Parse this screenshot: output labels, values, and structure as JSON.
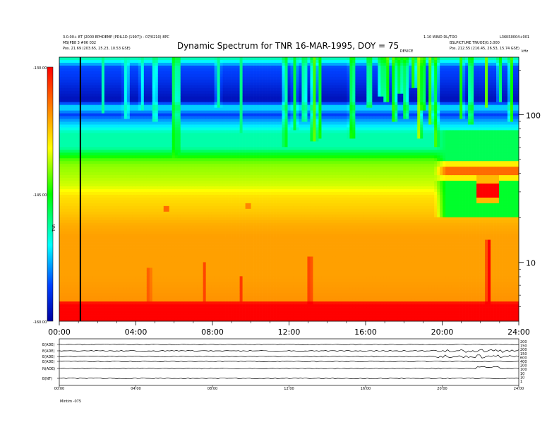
{
  "chart_data": {
    "type": "heatmap",
    "title": "Dynamic Spectrum for TNR 16-MAR-1995, DOY = 75",
    "header_left": [
      "3.0.00+ 8T (2000 EPHDEMP (PDIL1D (1997)) - 07/0210) 8PC",
      "MS(PB8 3 #06 032",
      "Pos.   21.69 (203.65, 25.23, 10.53 GSE)"
    ],
    "header_right": [
      "1.10 WIND DL/TOO",
      "L36KS0004+001",
      "BSLPICTURE TNUOE(0.3.000",
      "Pos.   212.55 (216.45, 26.53, 15.74 GSE)"
    ],
    "center_small_label": "DEVICE",
    "xaxis": {
      "range_hours": [
        0,
        24
      ],
      "tick_labels": [
        "00:00",
        "04:00",
        "08:00",
        "12:00",
        "16:00",
        "20:00",
        "24:00"
      ]
    },
    "yaxis_right": {
      "scale": "log",
      "unit_label": "kHz",
      "range_khz": [
        4.0,
        245.0
      ],
      "tick_labels": [
        "100",
        "10"
      ]
    },
    "colorbar": {
      "labels": [
        "-130.00",
        "-145.00",
        "-160.00"
      ],
      "range_db": [
        -160,
        -130
      ],
      "unit_label": "TNR",
      "colors": [
        "#ff0000",
        "#ff8000",
        "#ffff00",
        "#00ff00",
        "#00ffff",
        "#0040ff",
        "#0000a0"
      ]
    },
    "marker_time_hours": 1.1,
    "base_levels_db": [
      {
        "freq_khz": 245,
        "db": -138.5
      },
      {
        "freq_khz": 225,
        "db": -142
      },
      {
        "freq_khz": 210,
        "db": -145.5
      },
      {
        "freq_khz": 175,
        "db": -146.5
      },
      {
        "freq_khz": 125,
        "db": -149
      },
      {
        "freq_khz": 112,
        "db": -141
      },
      {
        "freq_khz": 100,
        "db": -146
      },
      {
        "freq_khz": 90,
        "db": -143
      },
      {
        "freq_khz": 75,
        "db": -139
      },
      {
        "freq_khz": 60,
        "db": -139
      },
      {
        "freq_khz": 49,
        "db": -133
      },
      {
        "freq_khz": 45,
        "db": -132
      },
      {
        "freq_khz": 40,
        "db": -131.5
      },
      {
        "freq_khz": 33,
        "db": -130.5
      },
      {
        "freq_khz": 28,
        "db": -128.5
      },
      {
        "freq_khz": 22,
        "db": -127.5
      },
      {
        "freq_khz": 18,
        "db": -126.5
      },
      {
        "freq_khz": 15,
        "db": -126
      },
      {
        "freq_khz": 8,
        "db": -126
      },
      {
        "freq_khz": 5.5,
        "db": -125.5
      },
      {
        "freq_khz": 5.0,
        "db": -112
      },
      {
        "freq_khz": 4.0,
        "db": -110
      }
    ],
    "bursts": [
      {
        "t": 2.3,
        "f_low_khz": 100,
        "db": -138
      },
      {
        "t": 3.5,
        "f_low_khz": 95,
        "db": -139
      },
      {
        "t": 4.3,
        "f_low_khz": 105,
        "db": -138
      },
      {
        "t": 5.0,
        "f_low_khz": 90,
        "db": -137
      },
      {
        "t": 6.0,
        "f_low_khz": 50,
        "db": -134
      },
      {
        "t": 6.2,
        "f_low_khz": 55,
        "db": -135
      },
      {
        "t": 8.3,
        "f_low_khz": 110,
        "db": -138
      },
      {
        "t": 9.5,
        "f_low_khz": 75,
        "db": -138
      },
      {
        "t": 11.8,
        "f_low_khz": 60,
        "db": -134
      },
      {
        "t": 12.3,
        "f_low_khz": 80,
        "db": -136
      },
      {
        "t": 12.8,
        "f_low_khz": 90,
        "db": -136
      },
      {
        "t": 13.3,
        "f_low_khz": 65,
        "db": -132
      },
      {
        "t": 13.6,
        "f_low_khz": 70,
        "db": -134
      },
      {
        "t": 15.3,
        "f_low_khz": 70,
        "db": -133
      },
      {
        "t": 16.2,
        "f_low_khz": 110,
        "db": -134
      },
      {
        "t": 16.8,
        "f_low_khz": 130,
        "db": -133
      },
      {
        "t": 17.1,
        "f_low_khz": 120,
        "db": -131
      },
      {
        "t": 17.5,
        "f_low_khz": 90,
        "db": -130
      },
      {
        "t": 17.8,
        "f_low_khz": 140,
        "db": -132
      },
      {
        "t": 18.1,
        "f_low_khz": 95,
        "db": -131
      },
      {
        "t": 18.5,
        "f_low_khz": 150,
        "db": -133
      },
      {
        "t": 18.8,
        "f_low_khz": 70,
        "db": -130
      },
      {
        "t": 19.0,
        "f_low_khz": 105,
        "db": -131
      },
      {
        "t": 19.4,
        "f_low_khz": 85,
        "db": -130
      },
      {
        "t": 19.7,
        "f_low_khz": 60,
        "db": -131
      },
      {
        "t": 21.0,
        "f_low_khz": 95,
        "db": -133
      },
      {
        "t": 21.5,
        "f_low_khz": 85,
        "db": -132
      },
      {
        "t": 22.3,
        "f_low_khz": 110,
        "db": -132
      },
      {
        "t": 23.0,
        "f_low_khz": 120,
        "db": -133
      },
      {
        "t": 23.6,
        "f_low_khz": 90,
        "db": -132
      }
    ],
    "low_freq_bursts": [
      {
        "t": 4.7,
        "f_high_khz": 9,
        "db": -121
      },
      {
        "t": 7.6,
        "f_high_khz": 10,
        "db": -122
      },
      {
        "t": 9.5,
        "f_high_khz": 8,
        "db": -122
      },
      {
        "t": 13.1,
        "f_high_khz": 11,
        "db": -118
      },
      {
        "t": 22.4,
        "f_high_khz": 14,
        "db": -112
      }
    ],
    "late_day_region": {
      "t_start": 19.6,
      "t_end": 24,
      "band_freq_khz": 42,
      "band_db": -124,
      "below_db": -136,
      "dip_t_range": [
        21.8,
        22.9
      ],
      "dip_freq_khz": 31,
      "dip_db": -120
    },
    "small_patches": [
      {
        "t": 5.6,
        "freq_khz": 23,
        "db": -124
      },
      {
        "t": 9.8,
        "freq_khz": 24,
        "db": -125
      }
    ],
    "bottom_panel": {
      "row_labels": [
        "E(ADE)",
        "E(ADE)",
        "E(ADE)",
        "E(ADE)",
        "N(ADE)",
        "B(NT)"
      ],
      "right_labels": [
        "200",
        "150",
        "200",
        "150",
        "600",
        "400",
        "200",
        "100",
        "10",
        "10",
        "1"
      ],
      "time_labels": [
        "00:00",
        "04:00",
        "08:00",
        "12:00",
        "16:00",
        "20:00",
        "24:00"
      ],
      "footer_label": "Mintim   -075"
    }
  }
}
